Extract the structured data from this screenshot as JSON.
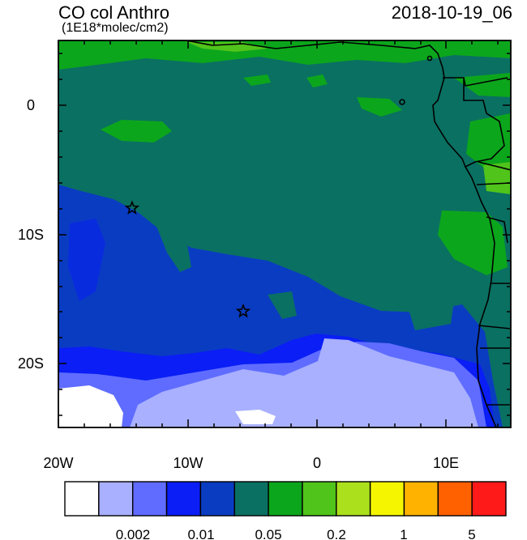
{
  "map": {
    "title": "CO col Anthro",
    "subtitle": "(1E18*molec/cm2)",
    "timestamp": "2018-10-19_06",
    "lon_labels": [
      "20W",
      "10W",
      "0",
      "10E"
    ],
    "lat_labels": [
      "0",
      "10S",
      "20S"
    ],
    "lon_range_deg": [
      -20,
      15
    ],
    "lat_range_deg": [
      -25,
      5
    ],
    "markers": [
      {
        "lon": -14.3,
        "lat": -8.0,
        "symbol": "star"
      },
      {
        "lon": -5.7,
        "lat": -16.0,
        "symbol": "star"
      }
    ]
  },
  "colorbar": {
    "colors": [
      "#ffffff",
      "#a8b0ff",
      "#5f6cff",
      "#0a1ef5",
      "#0a3cc2",
      "#0a7062",
      "#0ca61c",
      "#50c41a",
      "#aae01c",
      "#f5f500",
      "#ffb300",
      "#ff6000",
      "#ff1a1a"
    ],
    "labels": [
      "0.002",
      "0.01",
      "0.05",
      "0.2",
      "1",
      "5"
    ]
  }
}
